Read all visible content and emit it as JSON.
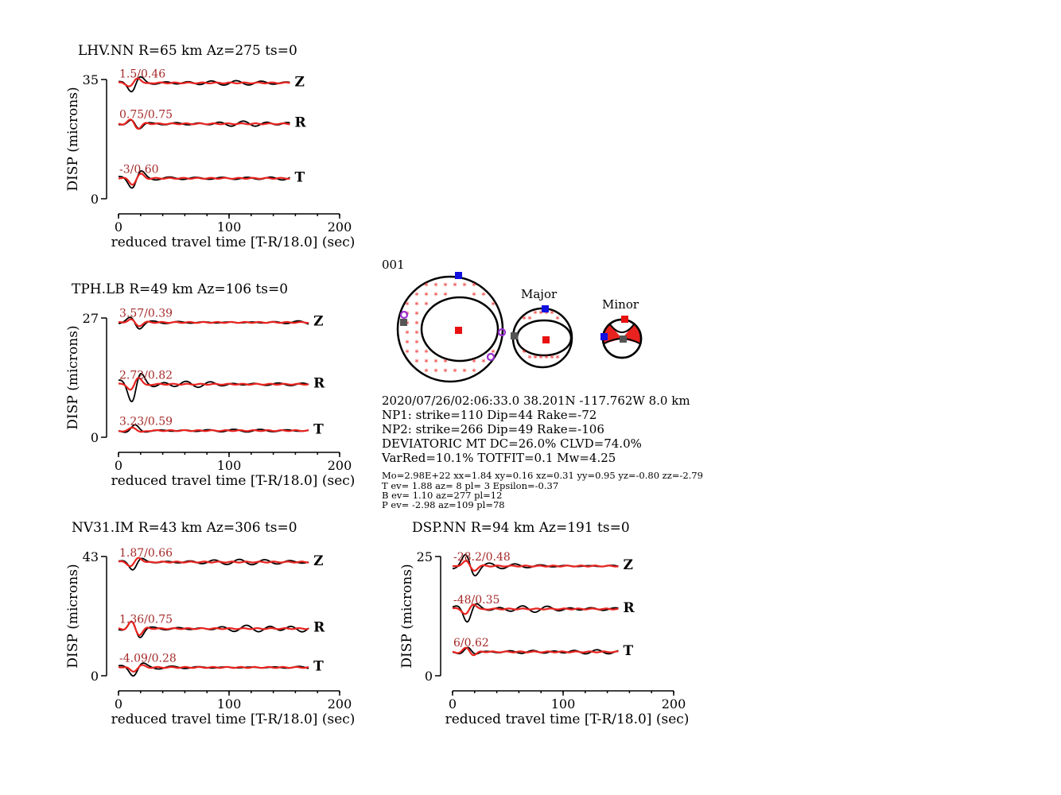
{
  "chart_data": [
    {
      "type": "line",
      "station": "LHV.NN",
      "title": "LHV.NN R=65 km Az=275 ts=0",
      "xlabel": "reduced travel time [T-R/18.0] (sec)",
      "ylabel": "DISP (microns)",
      "xticks": [
        "0",
        "100",
        "200"
      ],
      "yticks": [
        "35",
        "0"
      ],
      "xlim": [
        0,
        200
      ],
      "ylim": [
        0,
        35
      ],
      "trace_end": 155,
      "components": [
        {
          "name": "Z",
          "annotation": "1.5/0.46",
          "offset": 34,
          "gain": 1.0
        },
        {
          "name": "R",
          "annotation": "0.75/0.75",
          "offset": 22,
          "gain": 1.0
        },
        {
          "name": "T",
          "annotation": "-3/0.60",
          "offset": 6,
          "gain": 1.3
        }
      ]
    },
    {
      "type": "line",
      "station": "TPH.LB",
      "title": "TPH.LB R=49 km Az=106 ts=0",
      "xlabel": "reduced travel time [T-R/18.0] (sec)",
      "ylabel": "DISP (microns)",
      "xticks": [
        "0",
        "100",
        "200"
      ],
      "yticks": [
        "27",
        "0"
      ],
      "xlim": [
        0,
        200
      ],
      "ylim": [
        0,
        27
      ],
      "trace_end": 172,
      "components": [
        {
          "name": "Z",
          "annotation": "3.57/0.39",
          "offset": 26,
          "gain": 0.8
        },
        {
          "name": "R",
          "annotation": "2.72/0.82",
          "offset": 12,
          "gain": 1.5
        },
        {
          "name": "T",
          "annotation": "3.23/0.59",
          "offset": 1.5,
          "gain": 0.6
        }
      ]
    },
    {
      "type": "line",
      "station": "NV31.IM",
      "title": "NV31.IM R=43 km Az=306 ts=0",
      "xlabel": "reduced travel time [T-R/18.0] (sec)",
      "ylabel": "DISP (microns)",
      "xticks": [
        "0",
        "100",
        "200"
      ],
      "yticks": [
        "43",
        "0"
      ],
      "xlim": [
        0,
        200
      ],
      "ylim": [
        0,
        43
      ],
      "trace_end": 172,
      "components": [
        {
          "name": "Z",
          "annotation": "1.87/0.66",
          "offset": 41,
          "gain": 1.0
        },
        {
          "name": "R",
          "annotation": "1.36/0.75",
          "offset": 17,
          "gain": 1.5
        },
        {
          "name": "T",
          "annotation": "-4.09/0.28",
          "offset": 3,
          "gain": 0.8
        }
      ]
    },
    {
      "type": "line",
      "station": "DSP.NN",
      "title": "DSP.NN R=94 km Az=191 ts=0",
      "xlabel": "reduced travel time [T-R/18.0] (sec)",
      "ylabel": "DISP (microns)",
      "xticks": [
        "0",
        "100",
        "200"
      ],
      "yticks": [
        "25",
        "0"
      ],
      "xlim": [
        0,
        200
      ],
      "ylim": [
        0,
        25
      ],
      "trace_end": 150,
      "components": [
        {
          "name": "Z",
          "annotation": "-28.2/0.48",
          "offset": 23,
          "gain": 1.2
        },
        {
          "name": "R",
          "annotation": "-48/0.35",
          "offset": 14,
          "gain": 1.2
        },
        {
          "name": "T",
          "annotation": "6/0.62",
          "offset": 5,
          "gain": 0.8
        }
      ]
    }
  ],
  "focal_mechanism": {
    "event_id": "001",
    "major_label": "Major",
    "minor_label": "Minor",
    "origin": "2020/07/26/02:06:33.0 38.201N -117.762W 8.0 km",
    "np1": "NP1: strike=110 Dip=44 Rake=-72",
    "np2": "NP2: strike=266 Dip=49 Rake=-106",
    "deviatoric": "DEVIATORIC MT DC=26.0% CLVD=74.0%",
    "fit": "VarRed=10.1% TOTFIT=0.1 Mw=4.25",
    "moment_tensor": "Mo=2.98E+22 xx=1.84 xy=0.16 xz=0.31 yy=0.95 yz=-0.80 zz=-2.79",
    "t_axis": "T ev=  1.88 az=  8 pl= 3 Epsilon=-0.37",
    "b_axis": "B ev=  1.10 az=277 pl=12",
    "p_axis": "P ev= -2.98 az=109 pl=78",
    "colors": {
      "t_marker": "#1010e0",
      "p_marker": "#e81010",
      "b_marker": "#555555",
      "station_marker": "#9b30d0",
      "compression_star": "#e8231f"
    }
  },
  "colors": {
    "observed": "#000000",
    "synthetic": "#e8231f",
    "annotation": "#a52a2a"
  }
}
